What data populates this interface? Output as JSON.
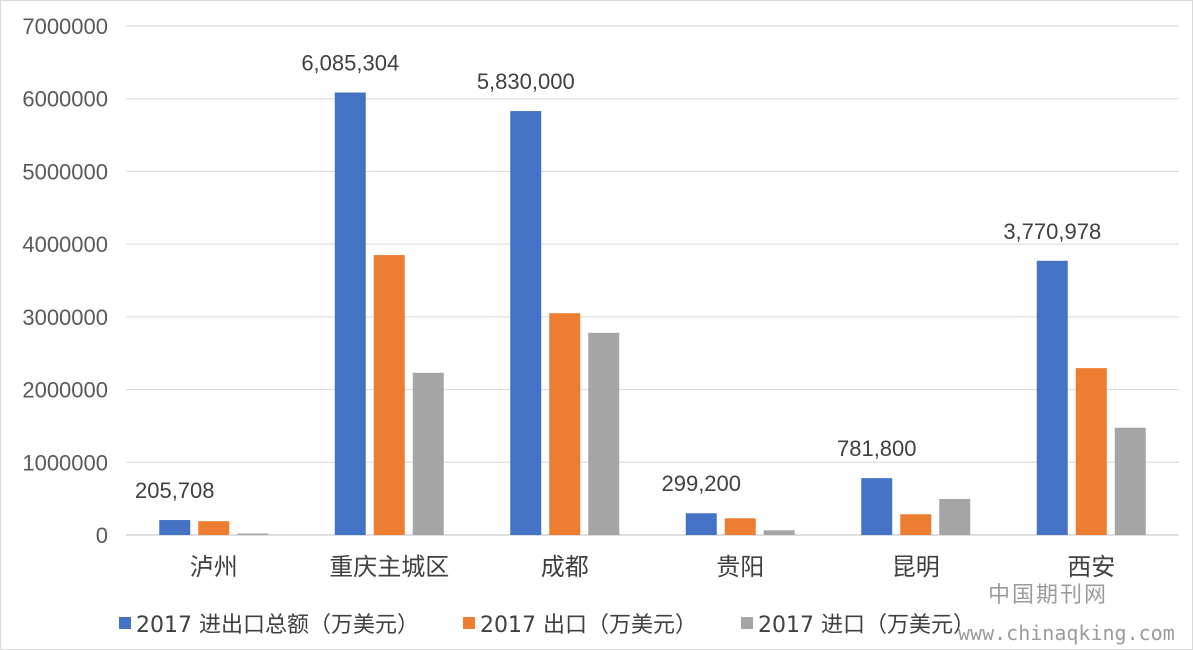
{
  "chart_data": {
    "type": "bar",
    "categories": [
      "泸州",
      "重庆主城区",
      "成都",
      "贵阳",
      "昆明",
      "西安"
    ],
    "series": [
      {
        "name": "2017 进出口总额（万美元）",
        "color": "#4472C4",
        "values": [
          205708,
          6085304,
          5830000,
          299200,
          781800,
          3770978
        ]
      },
      {
        "name": "2017 出口（万美元）",
        "color": "#ED7D31",
        "values": [
          190000,
          3850000,
          3050000,
          230000,
          285000,
          2295000
        ]
      },
      {
        "name": "2017 进口（万美元）",
        "color": "#A5A5A5",
        "values": [
          20000,
          2230000,
          2780000,
          65000,
          495000,
          1475000
        ]
      }
    ],
    "data_labels": [
      "205,708",
      "6,085,304",
      "5,830,000",
      "299,200",
      "781,800",
      "3,770,978"
    ],
    "y_ticks": [
      "0",
      "1000000",
      "2000000",
      "3000000",
      "4000000",
      "5000000",
      "6000000",
      "7000000"
    ],
    "ylim": [
      0,
      7000000
    ],
    "grid": true,
    "legend_position": "bottom",
    "title": "",
    "xlabel": "",
    "ylabel": ""
  },
  "watermark": {
    "text_cn": "中国期刊网",
    "text_url": "www.chinaqking.com"
  }
}
